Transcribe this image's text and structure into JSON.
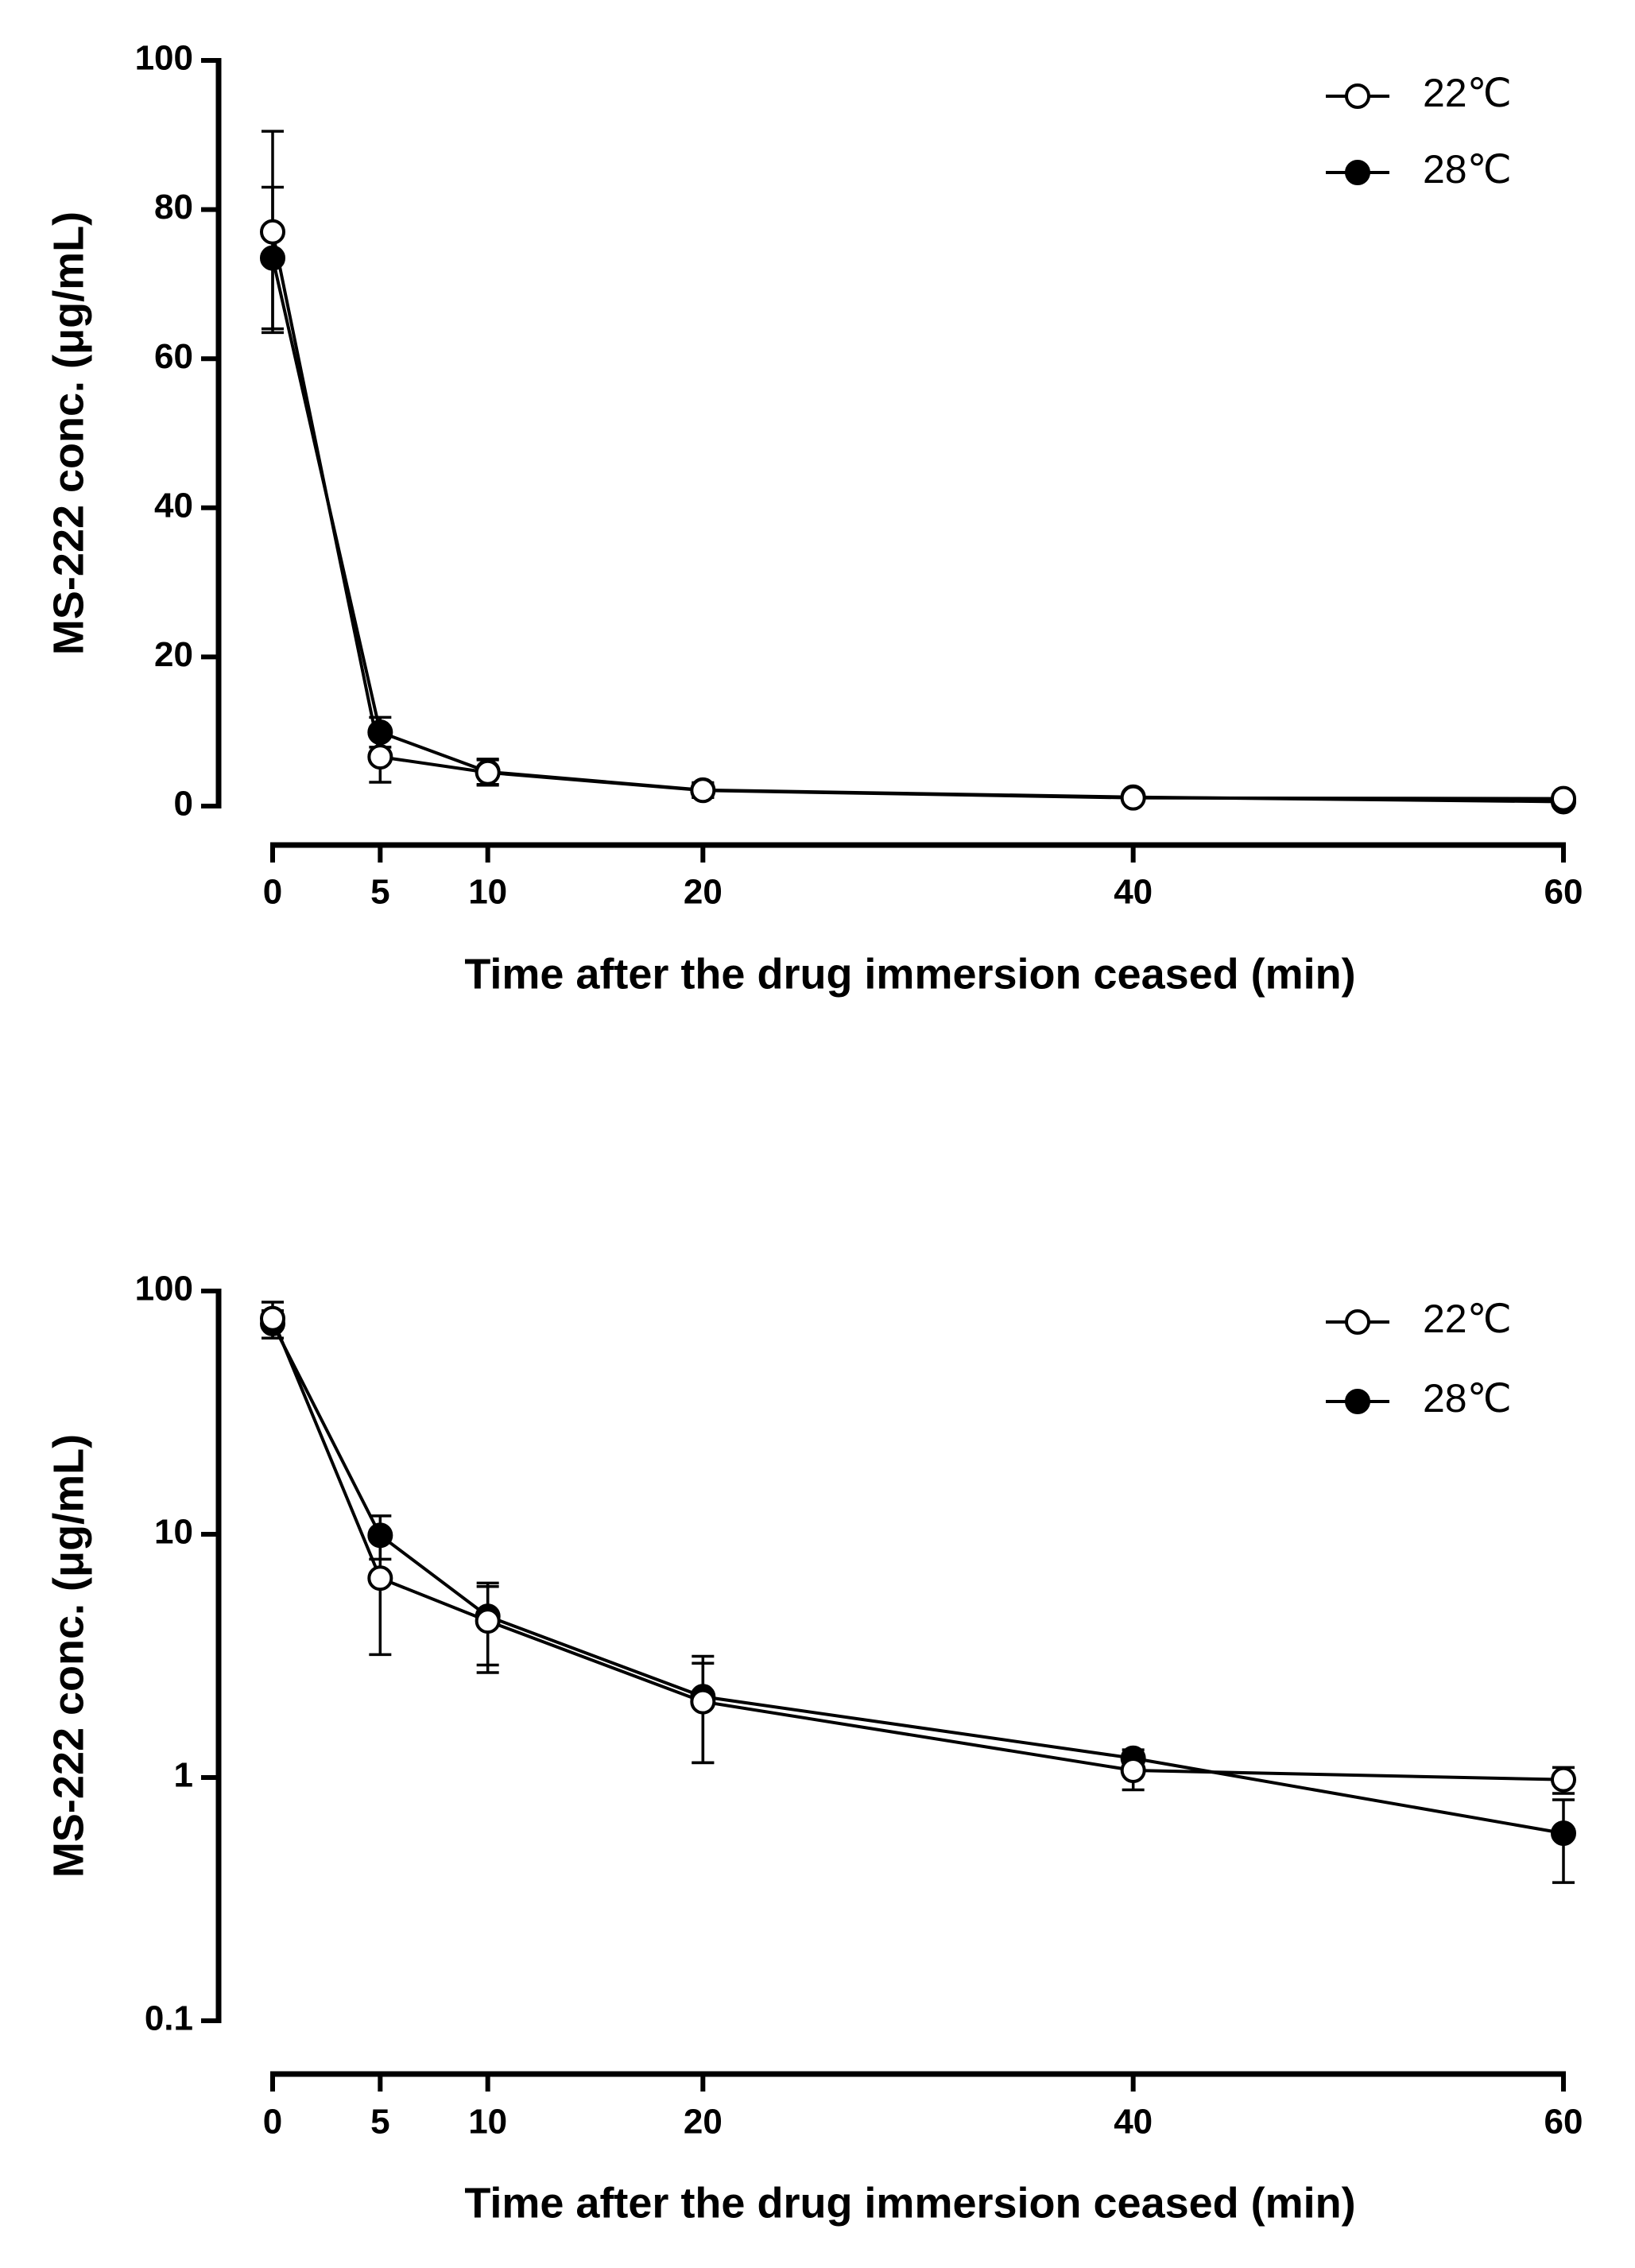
{
  "chart_data": [
    {
      "type": "line",
      "x_label": "Time after the drug immersion ceased (min)",
      "y_label": "MS-222 conc. (μg/mL)",
      "x": [
        0,
        5,
        10,
        20,
        40,
        60
      ],
      "xlim": [
        0,
        60
      ],
      "xticks": [
        0,
        5,
        10,
        20,
        40,
        60
      ],
      "ylim": [
        0,
        100
      ],
      "yticks": [
        0,
        20,
        40,
        60,
        80,
        100
      ],
      "log_scale": false,
      "legend": "upper right",
      "series": [
        {
          "name": "22℃",
          "color": "#000000",
          "marker_fill": "#ffffff",
          "values": [
            77,
            6.6,
            4.5,
            2.1,
            1.1,
            1.0
          ],
          "errors": [
            13.5,
            3.4,
            1.7,
            0.9,
            0.18,
            0.12
          ]
        },
        {
          "name": "28℃",
          "color": "#000000",
          "marker_fill": "#000000",
          "values": [
            73.5,
            9.9,
            4.6,
            2.15,
            1.2,
            0.59
          ],
          "errors": [
            9.5,
            2.0,
            1.7,
            1.0,
            0.1,
            0.22
          ]
        }
      ]
    },
    {
      "type": "line",
      "x_label": "Time after the drug immersion ceased (min)",
      "y_label": "MS-222 conc. (μg/mL)",
      "x": [
        0,
        5,
        10,
        20,
        40,
        60
      ],
      "xlim": [
        0,
        60
      ],
      "xticks": [
        0,
        5,
        10,
        20,
        40,
        60
      ],
      "ylim": [
        0.1,
        100
      ],
      "yticks": [
        0.1,
        1,
        10,
        100
      ],
      "log_scale": true,
      "legend": "upper right",
      "series": [
        {
          "name": "22℃",
          "color": "#000000",
          "marker_fill": "#ffffff",
          "values": [
            77,
            6.6,
            4.4,
            2.05,
            1.07,
            0.98
          ],
          "errors": [
            13,
            3.4,
            1.7,
            0.9,
            0.18,
            0.12
          ]
        },
        {
          "name": "28℃",
          "color": "#000000",
          "marker_fill": "#000000",
          "values": [
            73.5,
            9.9,
            4.6,
            2.15,
            1.2,
            0.59
          ],
          "errors": [
            9.5,
            2.0,
            1.7,
            1.0,
            0.1,
            0.22
          ]
        }
      ]
    }
  ]
}
